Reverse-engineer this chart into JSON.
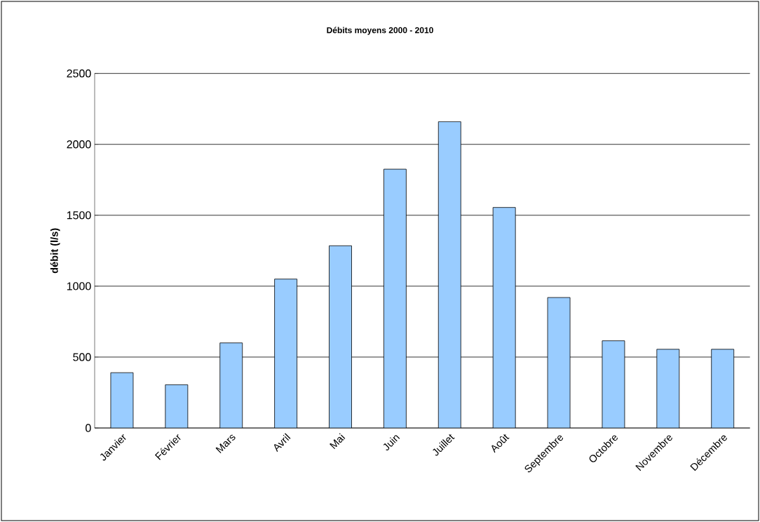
{
  "chart_data": {
    "type": "bar",
    "title": "Débits moyens 2000 - 2010",
    "ylabel": "débit (l/s)",
    "categories": [
      "Janvier",
      "Février",
      "Mars",
      "Avril",
      "Mai",
      "Juin",
      "Juillet",
      "Août",
      "Septembre",
      "Octobre",
      "Novembre",
      "Décembre"
    ],
    "values": [
      390,
      305,
      600,
      1050,
      1285,
      1825,
      2160,
      1555,
      920,
      615,
      555,
      555
    ],
    "color": "#99ccff",
    "ylim": [
      0,
      2500
    ],
    "yticks": [
      0,
      500,
      1000,
      1500,
      2000,
      2500
    ],
    "grid": "y"
  }
}
